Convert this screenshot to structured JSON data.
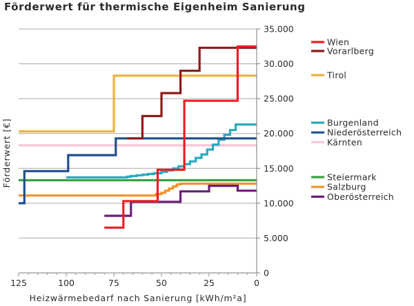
{
  "chart_data": {
    "type": "line",
    "title": "Förderwert für thermische Eigenheim Sanierung",
    "xlabel": "Heizwärmebedarf nach Sanierung  [kWh/m²a]",
    "ylabel": "Förderwert  [€]",
    "xlim": [
      125,
      0
    ],
    "ylim": [
      0,
      35000
    ],
    "x_ticks": [
      125,
      100,
      75,
      50,
      25,
      0
    ],
    "y_ticks": [
      0,
      5000,
      10000,
      15000,
      20000,
      25000,
      30000,
      35000
    ],
    "x_tick_labels": [
      "125",
      "100",
      "75",
      "50",
      "25",
      "0"
    ],
    "y_tick_labels": [
      "0",
      "5.000",
      "10.000",
      "15.000",
      "20.000",
      "25.000",
      "30.000",
      "35.000"
    ],
    "grid": "horizontal",
    "y_axis_side": "right",
    "legend_placement": "right",
    "series": [
      {
        "name": "Wien",
        "color": "#ee1c25",
        "group": 0,
        "x": [
          80,
          70,
          70,
          52,
          52,
          38,
          38,
          10,
          10,
          0
        ],
        "y": [
          6500,
          6500,
          10300,
          10300,
          14800,
          14800,
          24700,
          24700,
          32500,
          32500
        ]
      },
      {
        "name": "Vorarlberg",
        "color": "#8b1a1a",
        "group": 0,
        "x": [
          68,
          60,
          60,
          50,
          50,
          40,
          40,
          30,
          30,
          0
        ],
        "y": [
          19300,
          19300,
          22500,
          22500,
          25800,
          25800,
          29000,
          29000,
          32300,
          32300
        ]
      },
      {
        "name": "Tirol",
        "color": "#e8b440",
        "group": 1,
        "x": [
          125,
          75,
          75,
          0
        ],
        "y": [
          20300,
          20300,
          28300,
          28300
        ]
      },
      {
        "name": "Burgenland",
        "color": "#2aa9c0",
        "group": 2,
        "x": [
          100,
          68,
          68,
          66,
          66,
          63,
          63,
          60,
          60,
          57,
          57,
          54,
          54,
          50,
          50,
          47,
          47,
          44,
          44,
          41,
          41,
          38,
          38,
          35,
          35,
          32,
          32,
          29,
          29,
          26,
          26,
          23,
          23,
          20,
          20,
          17,
          17,
          14,
          14,
          11,
          11,
          0
        ],
        "y": [
          13700,
          13700,
          13800,
          13800,
          13900,
          13900,
          14000,
          14000,
          14100,
          14100,
          14200,
          14200,
          14300,
          14300,
          14500,
          14500,
          14700,
          14700,
          15000,
          15000,
          15300,
          15300,
          15600,
          15600,
          16000,
          16000,
          16500,
          16500,
          17000,
          17000,
          17700,
          17700,
          18400,
          18400,
          19100,
          19100,
          19800,
          19800,
          20500,
          20500,
          21300,
          21300
        ]
      },
      {
        "name": "Niederösterreich",
        "color": "#1f4f8f",
        "group": 2,
        "x": [
          125,
          122,
          122,
          99,
          99,
          74,
          74,
          0
        ],
        "y": [
          10000,
          10000,
          14600,
          14600,
          16900,
          16900,
          19300,
          19300
        ]
      },
      {
        "name": "Kärnten",
        "color": "#f7c6d8",
        "group": 2,
        "x": [
          125,
          0
        ],
        "y": [
          18300,
          18300
        ]
      },
      {
        "name": "Steiermark",
        "color": "#3aa042",
        "group": 3,
        "x": [
          125,
          0
        ],
        "y": [
          13300,
          13300
        ]
      },
      {
        "name": "Salzburg",
        "color": "#f0922a",
        "group": 3,
        "x": [
          125,
          53,
          53,
          50,
          50,
          48,
          48,
          46,
          46,
          44,
          44,
          42,
          42,
          40,
          40,
          0
        ],
        "y": [
          11100,
          11100,
          11300,
          11300,
          11500,
          11500,
          11800,
          11800,
          12100,
          12100,
          12400,
          12400,
          12700,
          12700,
          12800,
          12800
        ]
      },
      {
        "name": "Oberösterreich",
        "color": "#6a1f78",
        "group": 3,
        "x": [
          80,
          66,
          66,
          40,
          40,
          25,
          25,
          10,
          10,
          0
        ],
        "y": [
          8200,
          8200,
          10200,
          10200,
          11700,
          11700,
          12500,
          12500,
          11800,
          11800
        ]
      }
    ]
  }
}
